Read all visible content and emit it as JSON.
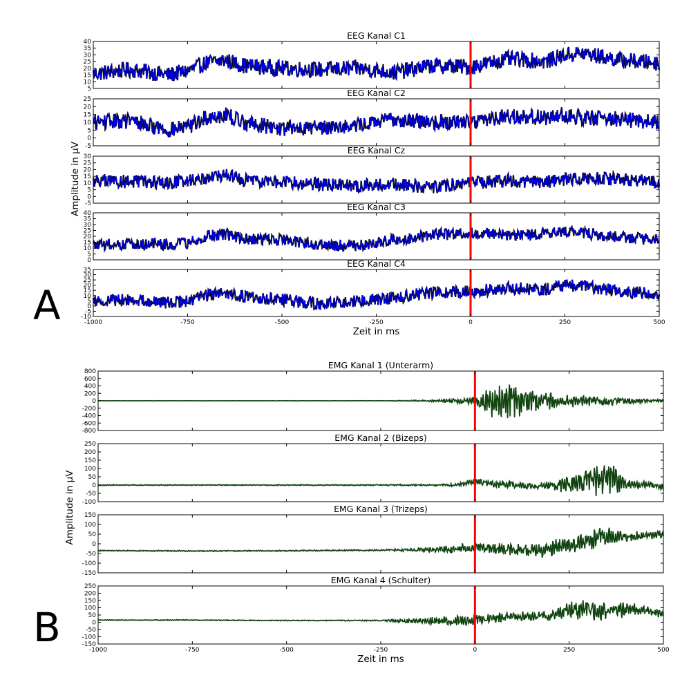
{
  "chart_data": [
    {
      "type": "line",
      "figure_label": "A",
      "xlabel": "Zeit in ms",
      "ylabel": "Amplitude in μV",
      "xlim": [
        -1000,
        500
      ],
      "xticks": [
        -1000,
        -750,
        -500,
        -250,
        0,
        250,
        500
      ],
      "marker_x": 0,
      "marker_color": "#ff0000",
      "line_color": "#0000ff",
      "outline_color": "#000000",
      "grid": false,
      "panels": [
        {
          "title": "EEG Kanal C1",
          "ylim": [
            5,
            40
          ],
          "yticks": [
            5,
            10,
            15,
            20,
            25,
            30,
            35,
            40
          ],
          "amplitude": 6,
          "x": [
            -1000,
            -900,
            -800,
            -750,
            -700,
            -650,
            -600,
            -500,
            -400,
            -300,
            -200,
            -100,
            0,
            100,
            200,
            250,
            300,
            400,
            500
          ],
          "y": [
            16,
            19,
            15,
            18,
            24,
            26,
            22,
            20,
            19,
            20,
            17,
            22,
            21,
            27,
            25,
            30,
            31,
            26,
            24
          ]
        },
        {
          "title": "EEG Kanal C2",
          "ylim": [
            -5,
            25
          ],
          "yticks": [
            -5,
            0,
            5,
            10,
            15,
            20,
            25
          ],
          "amplitude": 5,
          "x": [
            -1000,
            -900,
            -800,
            -750,
            -700,
            -650,
            -600,
            -500,
            -400,
            -300,
            -200,
            -100,
            0,
            100,
            200,
            250,
            300,
            400,
            500
          ],
          "y": [
            10,
            11,
            5,
            7,
            13,
            15,
            10,
            6,
            7,
            8,
            12,
            10,
            11,
            14,
            13,
            15,
            13,
            12,
            10
          ]
        },
        {
          "title": "EEG Kanal Cz",
          "ylim": [
            -5,
            30
          ],
          "yticks": [
            -5,
            0,
            5,
            10,
            15,
            20,
            25,
            30
          ],
          "amplitude": 5,
          "x": [
            -1000,
            -900,
            -800,
            -750,
            -700,
            -650,
            -600,
            -500,
            -400,
            -300,
            -200,
            -100,
            0,
            100,
            200,
            250,
            300,
            400,
            500
          ],
          "y": [
            12,
            11,
            10,
            12,
            14,
            16,
            12,
            11,
            9,
            8,
            9,
            7,
            10,
            12,
            10,
            13,
            14,
            13,
            10
          ]
        },
        {
          "title": "EEG Kanal C3",
          "ylim": [
            0,
            40
          ],
          "yticks": [
            0,
            5,
            10,
            15,
            20,
            25,
            30,
            35,
            40
          ],
          "amplitude": 5,
          "x": [
            -1000,
            -900,
            -800,
            -750,
            -700,
            -650,
            -600,
            -500,
            -400,
            -300,
            -200,
            -100,
            0,
            100,
            200,
            250,
            300,
            400,
            500
          ],
          "y": [
            12,
            14,
            13,
            14,
            20,
            22,
            18,
            17,
            13,
            12,
            17,
            21,
            23,
            21,
            22,
            25,
            23,
            19,
            17
          ]
        },
        {
          "title": "EEG Kanal C4",
          "ylim": [
            -10,
            35
          ],
          "yticks": [
            -10,
            -5,
            0,
            5,
            10,
            15,
            20,
            25,
            30,
            35
          ],
          "amplitude": 6,
          "x": [
            -1000,
            -900,
            -800,
            -750,
            -700,
            -650,
            -600,
            -500,
            -400,
            -300,
            -200,
            -100,
            0,
            100,
            200,
            250,
            300,
            400,
            500
          ],
          "y": [
            5,
            6,
            3,
            5,
            10,
            13,
            9,
            6,
            2,
            5,
            8,
            13,
            14,
            17,
            16,
            20,
            19,
            14,
            12
          ]
        }
      ]
    },
    {
      "type": "line",
      "figure_label": "B",
      "xlabel": "Zeit in ms",
      "ylabel": "Amplitude in μV",
      "xlim": [
        -1000,
        500
      ],
      "xticks": [
        -1000,
        -750,
        -500,
        -250,
        0,
        250,
        500
      ],
      "marker_x": 0,
      "marker_color": "#ff0000",
      "line_color": "#114411",
      "grid": false,
      "panels": [
        {
          "title": "EMG Kanal 1 (Unterarm)",
          "ylim": [
            -800,
            800
          ],
          "yticks": [
            -800,
            -600,
            -400,
            -200,
            0,
            200,
            400,
            600,
            800
          ],
          "x": [
            -1000,
            -750,
            -500,
            -250,
            -100,
            -50,
            0,
            50,
            100,
            150,
            200,
            250,
            300,
            350,
            400,
            450,
            500
          ],
          "y": [
            0,
            0,
            0,
            0,
            0,
            0,
            0,
            0,
            0,
            0,
            0,
            0,
            0,
            0,
            0,
            0,
            0
          ],
          "activity": [
            4,
            4,
            4,
            5,
            30,
            70,
            120,
            550,
            500,
            350,
            250,
            200,
            170,
            150,
            110,
            60,
            40
          ]
        },
        {
          "title": "EMG Kanal 2 (Bizeps)",
          "ylim": [
            -100,
            250
          ],
          "yticks": [
            -100,
            -50,
            0,
            50,
            100,
            150,
            200,
            250
          ],
          "x": [
            -1000,
            -750,
            -500,
            -250,
            -100,
            -50,
            0,
            50,
            100,
            150,
            200,
            250,
            300,
            350,
            400,
            450,
            500
          ],
          "y": [
            0,
            0,
            0,
            0,
            0,
            0,
            20,
            10,
            0,
            -5,
            0,
            5,
            20,
            40,
            10,
            5,
            -10
          ],
          "activity": [
            3,
            3,
            3,
            4,
            6,
            10,
            20,
            25,
            25,
            20,
            30,
            60,
            90,
            120,
            40,
            25,
            20
          ]
        },
        {
          "title": "EMG Kanal 3 (Trizeps)",
          "ylim": [
            -150,
            150
          ],
          "yticks": [
            -150,
            -100,
            -50,
            0,
            50,
            100,
            150
          ],
          "x": [
            -1000,
            -750,
            -500,
            -250,
            -100,
            -50,
            0,
            50,
            100,
            150,
            200,
            250,
            300,
            350,
            400,
            450,
            500
          ],
          "y": [
            -35,
            -37,
            -36,
            -33,
            -30,
            -25,
            -20,
            -25,
            -30,
            -35,
            -25,
            -5,
            20,
            40,
            35,
            45,
            50
          ],
          "activity": [
            3,
            3,
            3,
            4,
            15,
            25,
            30,
            35,
            40,
            45,
            45,
            50,
            55,
            50,
            30,
            25,
            20
          ]
        },
        {
          "title": "EMG Kanal 4 (Schulter)",
          "ylim": [
            -150,
            250
          ],
          "yticks": [
            -150,
            -100,
            -50,
            0,
            50,
            100,
            150,
            200,
            250
          ],
          "x": [
            -1000,
            -750,
            -500,
            -250,
            -100,
            -50,
            0,
            50,
            100,
            150,
            200,
            250,
            300,
            350,
            400,
            450,
            500
          ],
          "y": [
            15,
            15,
            12,
            12,
            10,
            10,
            20,
            30,
            40,
            40,
            50,
            80,
            90,
            70,
            90,
            80,
            60
          ],
          "activity": [
            3,
            3,
            3,
            4,
            30,
            45,
            45,
            35,
            35,
            35,
            40,
            60,
            80,
            60,
            55,
            40,
            30
          ]
        }
      ]
    }
  ]
}
